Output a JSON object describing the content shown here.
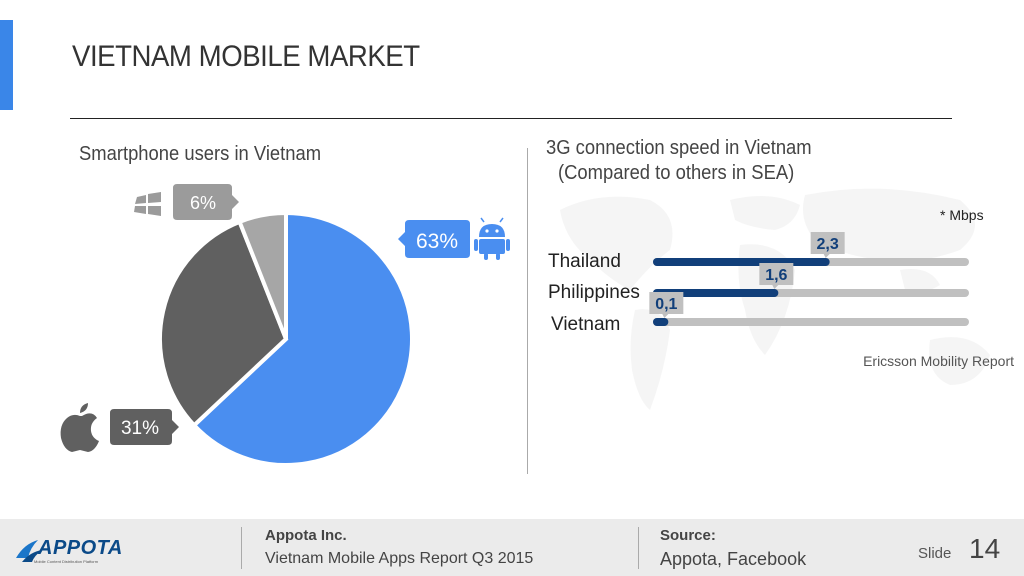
{
  "slide": {
    "title": "VIETNAM MOBILE MARKET",
    "left_heading": "Smartphone users in Vietnam",
    "right_heading": "3G connection speed in Vietnam",
    "right_subheading": "(Compared to others in SEA)",
    "unit_note": "* Mbps",
    "source_note": "Ericsson Mobility Report"
  },
  "colors": {
    "accent": "#3a86e8",
    "android": "#4a8ef0",
    "ios": "#606060",
    "windows": "#a6a6a6",
    "speed_bar": "#113f7a",
    "track": "#c0c0c0"
  },
  "chart_data": [
    {
      "type": "pie",
      "title": "Smartphone users in Vietnam",
      "slices": [
        {
          "name": "Android",
          "label": "63%",
          "value": 63,
          "icon": "android-icon"
        },
        {
          "name": "iOS",
          "label": "31%",
          "value": 31,
          "icon": "apple-icon"
        },
        {
          "name": "Windows Phone",
          "label": "6%",
          "value": 6,
          "icon": "windows-icon"
        }
      ]
    },
    {
      "type": "bar",
      "orientation": "horizontal",
      "title": "3G connection speed in Vietnam",
      "subtitle": "(Compared to others in SEA)",
      "unit": "* Mbps",
      "categories": [
        "Thailand",
        "Philippines",
        "Vietnam"
      ],
      "values": [
        2.3,
        1.6,
        0.1
      ],
      "value_labels": [
        "2,3",
        "1,6",
        "0,1"
      ],
      "xlim": [
        0,
        4.2
      ]
    }
  ],
  "footer": {
    "logo_text": "APPOTA",
    "logo_tagline": "Mobile Content Distribution Platform",
    "company": "Appota Inc.",
    "report": "Vietnam Mobile Apps Report Q3 2015",
    "source_label": "Source:",
    "source": "Appota, Facebook",
    "slide_label": "Slide",
    "slide_number": "14"
  }
}
